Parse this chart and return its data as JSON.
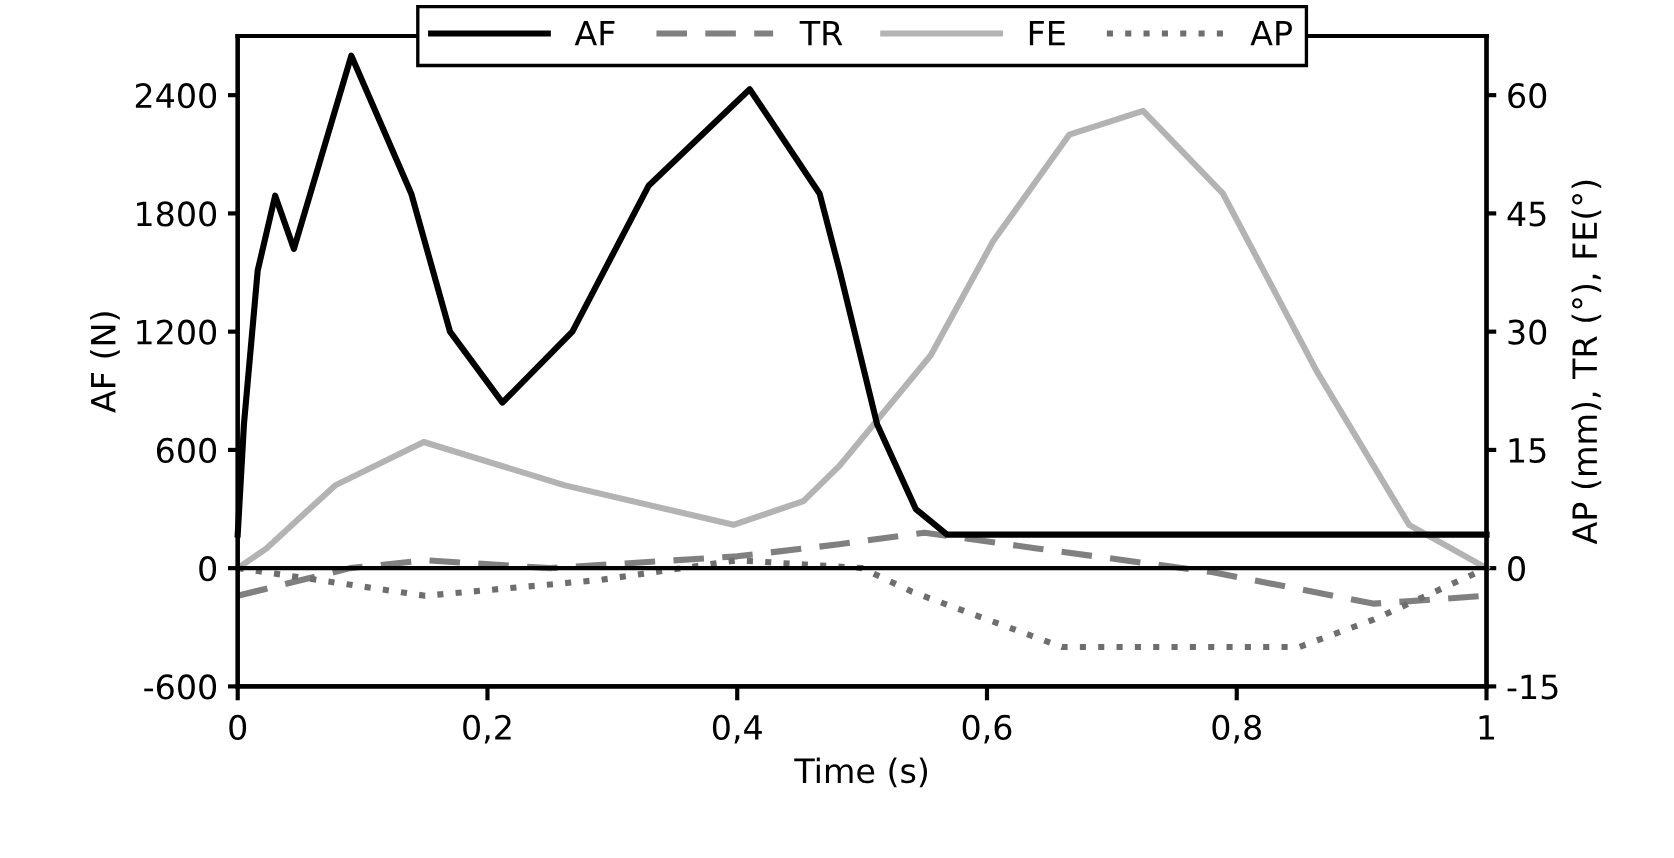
{
  "chart_data": {
    "type": "line",
    "xlabel": "Time (s)",
    "ylabel": "AF (N)",
    "y2label": "AP (mm), TR (°), FE(°)",
    "xlim": [
      0,
      1
    ],
    "xticks": [
      {
        "value": 0,
        "label": "0"
      },
      {
        "value": 0.2,
        "label": "0,2"
      },
      {
        "value": 0.4,
        "label": "0,4"
      },
      {
        "value": 0.6,
        "label": "0,6"
      },
      {
        "value": 0.8,
        "label": "0,8"
      },
      {
        "value": 1,
        "label": "1"
      }
    ],
    "ylim": [
      -600,
      2700
    ],
    "yticks": [
      -600,
      0,
      600,
      1200,
      1800,
      2400
    ],
    "y2lim": [
      -15,
      67.5
    ],
    "y2ticks": [
      -15,
      0,
      15,
      30,
      45,
      60
    ],
    "ref_lines": [
      {
        "axis": "y",
        "value": 0,
        "color": "#000000"
      }
    ],
    "legend": "top",
    "grid": false,
    "marker": "none",
    "series": [
      {
        "name": "AF",
        "color": "#000000",
        "line_style": "solid",
        "x": [
          0,
          0.005,
          0.016,
          0.03,
          0.045,
          0.091,
          0.139,
          0.17,
          0.212,
          0.268,
          0.329,
          0.41,
          0.466,
          0.482,
          0.512,
          0.543,
          0.568,
          0.6,
          0.8,
          1
        ],
        "values": [
          170,
          730,
          1510,
          1890,
          1620,
          2600,
          1900,
          1200,
          840,
          1200,
          1940,
          2430,
          1900,
          1510,
          730,
          300,
          170,
          170,
          170,
          170
        ]
      },
      {
        "name": "TR",
        "color": "#808080",
        "line_style": "dashed",
        "axis": "y2",
        "x": [
          0,
          0.09,
          0.15,
          0.25,
          0.4,
          0.48,
          0.55,
          0.64,
          0.78,
          0.91,
          1
        ],
        "values": [
          -3.5,
          0,
          1,
          0,
          1.5,
          3,
          4.5,
          2.5,
          -0.5,
          -4.5,
          -3.5
        ]
      },
      {
        "name": "FE",
        "color": "#b3b3b3",
        "line_style": "solid",
        "axis": "y2",
        "x": [
          0,
          0.023,
          0.078,
          0.149,
          0.262,
          0.397,
          0.453,
          0.482,
          0.555,
          0.605,
          0.666,
          0.725,
          0.789,
          0.864,
          0.938,
          1
        ],
        "values": [
          0,
          2.5,
          10.5,
          16,
          10.5,
          5.5,
          8.5,
          13,
          27,
          41.5,
          55,
          58,
          47.5,
          25,
          5.5,
          0
        ]
      },
      {
        "name": "AP",
        "color": "#6e6e6e",
        "line_style": "dotted",
        "axis": "y2",
        "x": [
          0,
          0.15,
          0.29,
          0.4,
          0.5,
          0.54,
          0.66,
          0.85,
          0.91,
          1
        ],
        "values": [
          0,
          -3.5,
          -1.5,
          1,
          0,
          -3,
          -10,
          -10,
          -6.5,
          0
        ]
      }
    ]
  }
}
